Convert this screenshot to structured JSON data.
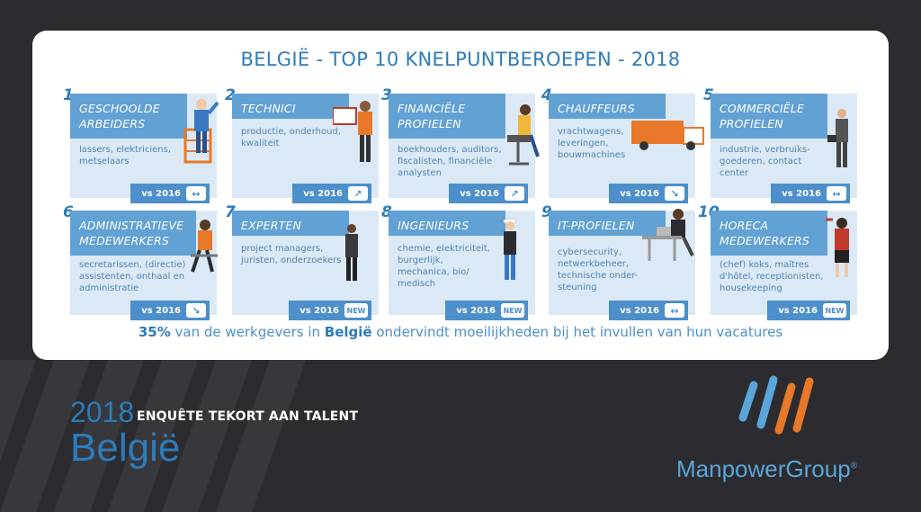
{
  "title": "BELGIË - TOP 10 KNELPUNTBEROEPEN - 2018",
  "cards": [
    {
      "num": "1",
      "title": "GESCHOOLDE ARBEIDERS",
      "desc": "lassers, elektriciens, metselaars",
      "badge": "vs 2016",
      "trend": "↔"
    },
    {
      "num": "2",
      "title": "TECHNICI",
      "desc": "productie, onderhoud, kwaliteit",
      "badge": "vs 2016",
      "trend": "↗"
    },
    {
      "num": "3",
      "title": "FINANCIËLE PROFIELEN",
      "desc": "boekhouders, auditors, fiscalisten, financiële analysten",
      "badge": "vs 2016",
      "trend": "↗"
    },
    {
      "num": "4",
      "title": "CHAUFFEURS",
      "desc": "vrachtwagens, leveringen, bouwmachines",
      "badge": "vs 2016",
      "trend": "↘"
    },
    {
      "num": "5",
      "title": "COMMERCIËLE PROFIELEN",
      "desc": "industrie, verbruiks-goederen, contact center",
      "badge": "vs 2016",
      "trend": "↔"
    },
    {
      "num": "6",
      "title": "ADMINISTRATIEVE MEDEWERKERS",
      "desc": "secretarissen, (directie) assistenten, onthaal en administratie",
      "badge": "vs 2016",
      "trend": "↘"
    },
    {
      "num": "7",
      "title": "EXPERTEN",
      "desc": "project managers, juristen, onderzoekers",
      "badge": "vs 2016",
      "trend": "NEW"
    },
    {
      "num": "8",
      "title": "INGENIEURS",
      "desc": "chemie, elektriciteit, burgerlijk, mechanica, bio/ medisch",
      "badge": "vs 2016",
      "trend": "NEW"
    },
    {
      "num": "9",
      "title": "IT-PROFIELEN",
      "desc": "cybersecurity, netwerkbeheer, technische onder-steuning",
      "badge": "vs 2016",
      "trend": "↔"
    },
    {
      "num": "10",
      "title": "HORECA MEDEWERKERS",
      "desc": "(chef) koks, maîtres d'hôtel, receptionisten, housekeeping",
      "badge": "vs 2016",
      "trend": "NEW"
    }
  ],
  "stat": {
    "pct": "35%",
    "mid": " van de werkgevers in ",
    "country": "België",
    "end": " ondervindt moeilijkheden bij het invullen van hun vacatures"
  },
  "survey": {
    "year": "2018",
    "subtitle": "ENQUÊTE TEKORT AAN TALENT",
    "country": "België"
  },
  "brand": {
    "name": "ManpowerGroup",
    "mark": "®"
  },
  "colors": {
    "accent": "#2e7bb9",
    "header": "#62a1d4",
    "card": "#dbe9f6",
    "background": "#2c2c30",
    "orange": "#e8782a"
  }
}
